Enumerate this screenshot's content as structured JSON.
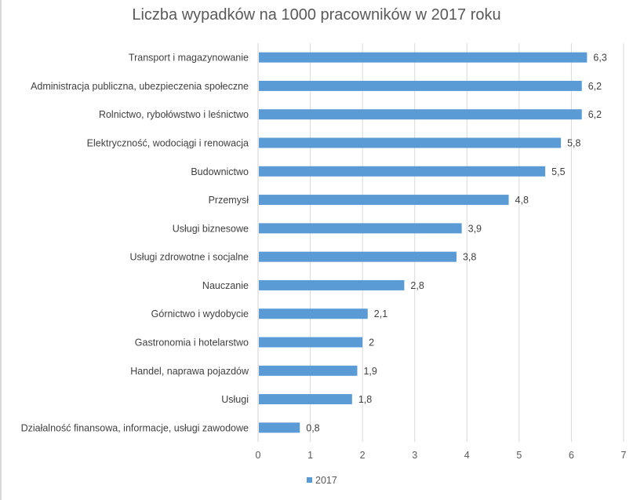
{
  "chart_data": {
    "type": "bar",
    "orientation": "horizontal",
    "title": "Liczba wypadków na 1000 pracowników w 2017 roku",
    "xlabel": "",
    "ylabel": "",
    "xlim": [
      0,
      7
    ],
    "x_ticks": [
      "0",
      "1",
      "2",
      "3",
      "4",
      "5",
      "6",
      "7"
    ],
    "grid": true,
    "legend_position": "bottom",
    "categories": [
      "Transport i magazynowanie",
      "Administracja publiczna, ubezpieczenia społeczne",
      "Rolnictwo, rybołówstwo i leśnictwo",
      "Elektryczność, wodociągi i renowacja",
      "Budownictwo",
      "Przemysł",
      "Usługi biznesowe",
      "Usługi zdrowotne i socjalne",
      "Nauczanie",
      "Górnictwo i wydobycie",
      "Gastronomia i hotelarstwo",
      "Handel, naprawa pojazdów",
      "Usługi",
      "Działalność finansowa, informacje, usługi zawodowe"
    ],
    "series": [
      {
        "name": "2017",
        "color": "#5b9bd5",
        "values": [
          6.3,
          6.2,
          6.2,
          5.8,
          5.5,
          4.8,
          3.9,
          3.8,
          2.8,
          2.1,
          2,
          1.9,
          1.8,
          0.8
        ],
        "labels": [
          "6,3",
          "6,2",
          "6,2",
          "5,8",
          "5,5",
          "4,8",
          "3,9",
          "3,8",
          "2,8",
          "2,1",
          "2",
          "1,9",
          "1,8",
          "0,8"
        ]
      }
    ]
  }
}
